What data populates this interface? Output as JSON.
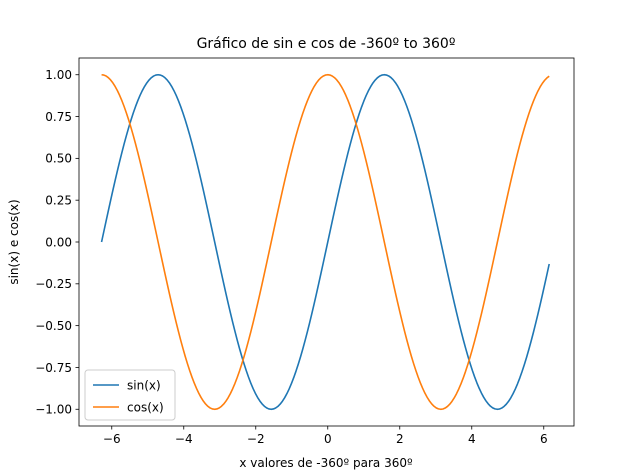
{
  "chart_data": {
    "type": "line",
    "title": "Gráfico de sin e cos de -360º to 360º",
    "xlabel": "x valores de -360º para 360º",
    "ylabel": "sin(x) e cos(x)",
    "xlim": [
      -6.91,
      6.84
    ],
    "ylim": [
      -1.1,
      1.1
    ],
    "xticks": [
      -6,
      -4,
      -2,
      0,
      2,
      4,
      6
    ],
    "xtick_labels": [
      "−6",
      "−4",
      "−2",
      "0",
      "2",
      "4",
      "6"
    ],
    "yticks": [
      -1.0,
      -0.75,
      -0.5,
      -0.25,
      0.0,
      0.25,
      0.5,
      0.75,
      1.0
    ],
    "ytick_labels": [
      "−1.00",
      "−0.75",
      "−0.50",
      "−0.25",
      "0.00",
      "0.25",
      "0.50",
      "0.75",
      "1.00"
    ],
    "x_range": {
      "start": -6.2832,
      "stop": 6.2,
      "step": 0.0628
    },
    "series": [
      {
        "name": "sin(x)",
        "function": "sin",
        "color": "#1f77b4"
      },
      {
        "name": "cos(x)",
        "function": "cos",
        "color": "#ff7f0e"
      }
    ],
    "legend": {
      "position": "lower-left"
    },
    "grid": false
  }
}
